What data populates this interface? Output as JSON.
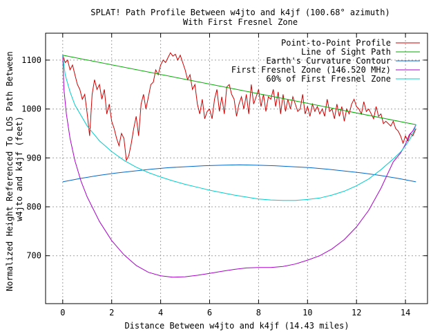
{
  "chart_data": {
    "type": "line",
    "title": "SPLAT! Path Profile Between w4jto and k4jf (100.68° azimuth)",
    "subtitle": "With First Fresnel Zone",
    "xlabel": "Distance Between w4jto and k4jf (14.43 miles)",
    "ylabel": "Normalized Height Referenced To LOS Path Between w4jto and k4jf (feet)",
    "ylabel_lines": [
      "Normalized Height Referenced To LOS Path Between",
      "w4jto and k4jf (feet)"
    ],
    "xlim": [
      -0.7,
      14.9
    ],
    "ylim": [
      602,
      1155
    ],
    "x_ticks": [
      0,
      2,
      4,
      6,
      8,
      10,
      12,
      14
    ],
    "y_ticks": [
      700,
      800,
      900,
      1000,
      1100
    ],
    "grid": true,
    "legend_position": "top-right",
    "series": [
      {
        "name": "Point-to-Point Profile",
        "color": "#cc0000",
        "x": [
          0,
          0.1,
          0.2,
          0.3,
          0.4,
          0.5,
          0.6,
          0.7,
          0.8,
          0.9,
          1.0,
          1.1,
          1.2,
          1.3,
          1.4,
          1.5,
          1.6,
          1.7,
          1.8,
          1.9,
          2.0,
          2.1,
          2.2,
          2.3,
          2.4,
          2.5,
          2.6,
          2.7,
          2.8,
          2.9,
          3.0,
          3.1,
          3.2,
          3.3,
          3.4,
          3.5,
          3.6,
          3.7,
          3.8,
          3.9,
          4.0,
          4.1,
          4.2,
          4.3,
          4.4,
          4.5,
          4.6,
          4.7,
          4.8,
          4.9,
          5.0,
          5.1,
          5.2,
          5.3,
          5.4,
          5.5,
          5.6,
          5.7,
          5.8,
          5.9,
          6.0,
          6.1,
          6.2,
          6.3,
          6.4,
          6.5,
          6.6,
          6.7,
          6.8,
          6.9,
          7.0,
          7.1,
          7.2,
          7.3,
          7.4,
          7.5,
          7.6,
          7.7,
          7.8,
          7.9,
          8.0,
          8.1,
          8.2,
          8.3,
          8.4,
          8.5,
          8.6,
          8.7,
          8.8,
          8.9,
          9.0,
          9.1,
          9.2,
          9.3,
          9.4,
          9.5,
          9.6,
          9.7,
          9.8,
          9.9,
          10.0,
          10.1,
          10.2,
          10.3,
          10.4,
          10.5,
          10.6,
          10.7,
          10.8,
          10.9,
          11.0,
          11.1,
          11.2,
          11.3,
          11.4,
          11.5,
          11.6,
          11.7,
          11.8,
          11.9,
          12.0,
          12.1,
          12.2,
          12.3,
          12.4,
          12.5,
          12.6,
          12.7,
          12.8,
          12.9,
          13.0,
          13.1,
          13.2,
          13.3,
          13.4,
          13.5,
          13.6,
          13.7,
          13.8,
          13.9,
          14.0,
          14.1,
          14.2,
          14.3,
          14.43
        ],
        "y": [
          1110,
          1095,
          1100,
          1080,
          1090,
          1070,
          1050,
          1040,
          1020,
          1030,
          990,
          945,
          1030,
          1060,
          1040,
          1050,
          1020,
          1040,
          990,
          1010,
          975,
          960,
          940,
          925,
          950,
          940,
          895,
          905,
          930,
          960,
          985,
          945,
          1010,
          1030,
          1000,
          1025,
          1050,
          1055,
          1080,
          1070,
          1090,
          1100,
          1095,
          1105,
          1115,
          1108,
          1112,
          1100,
          1110,
          1095,
          1080,
          1060,
          1070,
          1040,
          1050,
          1010,
          990,
          1020,
          980,
          995,
          1000,
          980,
          1020,
          1040,
          995,
          1025,
          990,
          1045,
          1050,
          1030,
          1020,
          985,
          1010,
          1025,
          1000,
          1030,
          990,
          1050,
          1010,
          1025,
          1040,
          1005,
          1030,
          995,
          1025,
          1020,
          1040,
          1005,
          1035,
          990,
          1030,
          995,
          1020,
          1000,
          1025,
          1010,
          995,
          1000,
          1030,
          990,
          1005,
          985,
          1010,
          995,
          1005,
          990,
          1000,
          985,
          1020,
          995,
          1000,
          980,
          1010,
          985,
          1005,
          975,
          1000,
          990,
          1010,
          1020,
          1005,
          1000,
          990,
          1015,
          995,
          1000,
          990,
          980,
          1005,
          985,
          990,
          970,
          975,
          970,
          965,
          975,
          960,
          955,
          945,
          930,
          945,
          935,
          950,
          945,
          960
        ]
      },
      {
        "name": "Line of Sight Path",
        "color": "#00aa00",
        "x": [
          0,
          14.43
        ],
        "y": [
          1110,
          968
        ]
      },
      {
        "name": "Earth's Curvature Contour",
        "color": "#0066cc",
        "x": [
          0,
          0.72,
          1.44,
          2.16,
          2.89,
          3.61,
          4.33,
          5.05,
          5.77,
          6.49,
          7.22,
          7.94,
          8.66,
          9.38,
          10.1,
          10.82,
          11.54,
          12.27,
          12.99,
          13.71,
          14.43
        ],
        "y": [
          851,
          858,
          864,
          869,
          873,
          877,
          880,
          882,
          884,
          885,
          886,
          885,
          884,
          882,
          880,
          877,
          873,
          869,
          864,
          858,
          851
        ]
      },
      {
        "name": "First Fresnel Zone (146.520 MHz)",
        "color": "#aa00cc",
        "x": [
          0,
          0.05,
          0.15,
          0.3,
          0.5,
          0.75,
          1.0,
          1.5,
          2.0,
          2.5,
          3.0,
          3.5,
          4.0,
          4.5,
          5.0,
          5.5,
          6.0,
          6.5,
          7.0,
          7.5,
          8.0,
          8.5,
          9.0,
          9.5,
          10.0,
          10.5,
          11.0,
          11.5,
          12.0,
          12.5,
          13.0,
          13.5,
          13.8,
          14.0,
          14.15,
          14.3,
          14.38,
          14.43
        ],
        "y": [
          1110,
          1040,
          990,
          940,
          894,
          852,
          820,
          770,
          731,
          702,
          680,
          666,
          659,
          656,
          657,
          660,
          664,
          668,
          672,
          675,
          676,
          676,
          678,
          683,
          691,
          700,
          714,
          733,
          759,
          793,
          838,
          892,
          910,
          928,
          947,
          955,
          963,
          968
        ]
      },
      {
        "name": "60% of First Fresnel Zone",
        "color": "#00cccc",
        "x": [
          0,
          0.1,
          0.3,
          0.5,
          1.0,
          1.5,
          2.0,
          2.5,
          3.0,
          3.5,
          4.0,
          4.5,
          5.0,
          5.5,
          6.0,
          6.5,
          7.0,
          7.5,
          8.0,
          8.5,
          9.0,
          9.5,
          10.0,
          10.5,
          11.0,
          11.5,
          12.0,
          12.5,
          13.0,
          13.5,
          13.8,
          14.0,
          14.2,
          14.35,
          14.43
        ],
        "y": [
          1110,
          1070,
          1035,
          1008,
          965,
          935,
          913,
          895,
          881,
          870,
          861,
          853,
          846,
          840,
          834,
          829,
          824,
          820,
          816,
          814,
          813,
          813,
          815,
          818,
          824,
          832,
          843,
          857,
          876,
          898,
          912,
          925,
          940,
          955,
          968
        ]
      }
    ]
  }
}
